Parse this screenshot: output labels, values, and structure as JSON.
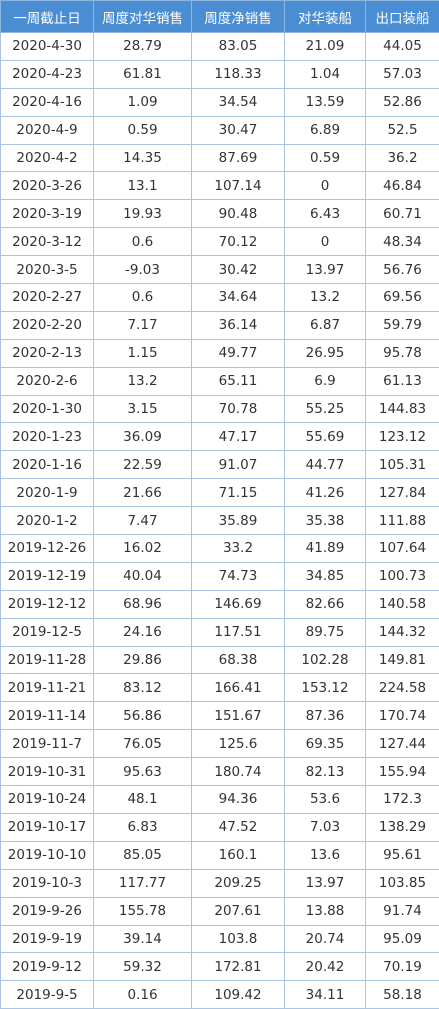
{
  "table": {
    "header": [
      "一周截止日",
      "周度对华销售",
      "周度净销售",
      "对华装船",
      "出口装船"
    ],
    "rows": [
      [
        "2020-4-30",
        "28.79",
        "83.05",
        "21.09",
        "44.05"
      ],
      [
        "2020-4-23",
        "61.81",
        "118.33",
        "1.04",
        "57.03"
      ],
      [
        "2020-4-16",
        "1.09",
        "34.54",
        "13.59",
        "52.86"
      ],
      [
        "2020-4-9",
        "0.59",
        "30.47",
        "6.89",
        "52.5"
      ],
      [
        "2020-4-2",
        "14.35",
        "87.69",
        "0.59",
        "36.2"
      ],
      [
        "2020-3-26",
        "13.1",
        "107.14",
        "0",
        "46.84"
      ],
      [
        "2020-3-19",
        "19.93",
        "90.48",
        "6.43",
        "60.71"
      ],
      [
        "2020-3-12",
        "0.6",
        "70.12",
        "0",
        "48.34"
      ],
      [
        "2020-3-5",
        "-9.03",
        "30.42",
        "13.97",
        "56.76"
      ],
      [
        "2020-2-27",
        "0.6",
        "34.64",
        "13.2",
        "69.56"
      ],
      [
        "2020-2-20",
        "7.17",
        "36.14",
        "6.87",
        "59.79"
      ],
      [
        "2020-2-13",
        "1.15",
        "49.77",
        "26.95",
        "95.78"
      ],
      [
        "2020-2-6",
        "13.2",
        "65.11",
        "6.9",
        "61.13"
      ],
      [
        "2020-1-30",
        "3.15",
        "70.78",
        "55.25",
        "144.83"
      ],
      [
        "2020-1-23",
        "36.09",
        "47.17",
        "55.69",
        "123.12"
      ],
      [
        "2020-1-16",
        "22.59",
        "91.07",
        "44.77",
        "105.31"
      ],
      [
        "2020-1-9",
        "21.66",
        "71.15",
        "41.26",
        "127.84"
      ],
      [
        "2020-1-2",
        "7.47",
        "35.89",
        "35.38",
        "111.88"
      ],
      [
        "2019-12-26",
        "16.02",
        "33.2",
        "41.89",
        "107.64"
      ],
      [
        "2019-12-19",
        "40.04",
        "74.73",
        "34.85",
        "100.73"
      ],
      [
        "2019-12-12",
        "68.96",
        "146.69",
        "82.66",
        "140.58"
      ],
      [
        "2019-12-5",
        "24.16",
        "117.51",
        "89.75",
        "144.32"
      ],
      [
        "2019-11-28",
        "29.86",
        "68.38",
        "102.28",
        "149.81"
      ],
      [
        "2019-11-21",
        "83.12",
        "166.41",
        "153.12",
        "224.58"
      ],
      [
        "2019-11-14",
        "56.86",
        "151.67",
        "87.36",
        "170.74"
      ],
      [
        "2019-11-7",
        "76.05",
        "125.6",
        "69.35",
        "127.44"
      ],
      [
        "2019-10-31",
        "95.63",
        "180.74",
        "82.13",
        "155.94"
      ],
      [
        "2019-10-24",
        "48.1",
        "94.36",
        "53.6",
        "172.3"
      ],
      [
        "2019-10-17",
        "6.83",
        "47.52",
        "7.03",
        "138.29"
      ],
      [
        "2019-10-10",
        "85.05",
        "160.1",
        "13.6",
        "95.61"
      ],
      [
        "2019-10-3",
        "117.77",
        "209.25",
        "13.97",
        "103.85"
      ],
      [
        "2019-9-26",
        "155.78",
        "207.61",
        "13.88",
        "91.74"
      ],
      [
        "2019-9-19",
        "39.14",
        "103.8",
        "20.74",
        "95.09"
      ],
      [
        "2019-9-12",
        "59.32",
        "172.81",
        "20.42",
        "70.19"
      ],
      [
        "2019-9-5",
        "0.16",
        "109.42",
        "34.11",
        "58.18"
      ]
    ]
  }
}
